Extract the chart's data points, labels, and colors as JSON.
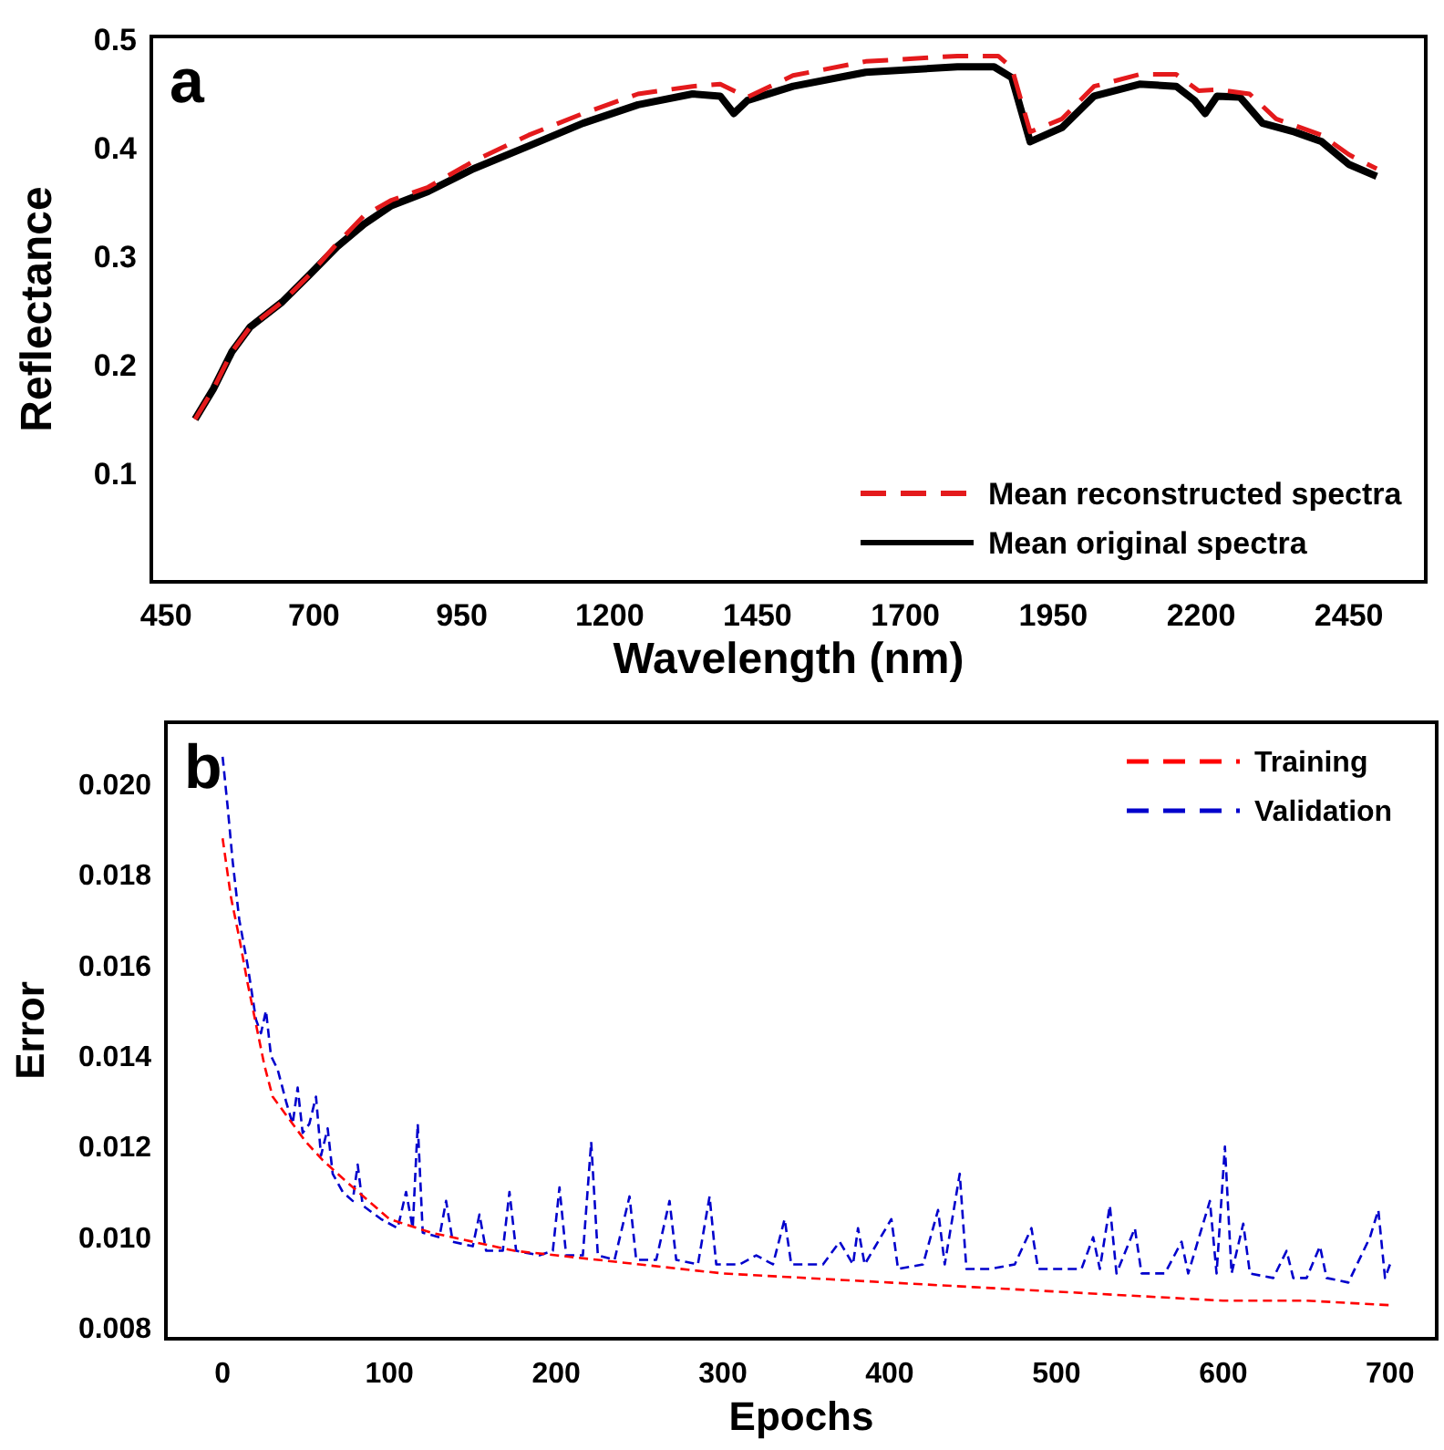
{
  "chart_data": [
    {
      "type": "line",
      "xlabel": "Wavelength (nm)",
      "ylabel": "Reflectance",
      "annotations": [
        "a"
      ],
      "xlim": [
        425,
        2580
      ],
      "ylim": [
        0,
        0.503
      ],
      "xticks": [
        450,
        700,
        950,
        1200,
        1450,
        1700,
        1950,
        2200,
        2450
      ],
      "yticks": [
        0.1,
        0.2,
        0.3,
        0.4,
        0.5
      ],
      "grid": false,
      "legend": "bottom right",
      "series": [
        {
          "name": "Mean reconstructed spectra",
          "color": "#e41a1c",
          "line_style": "dashed",
          "x": [
            499,
            530,
            561,
            592,
            646,
            692,
            739,
            785,
            831,
            893,
            970,
            1063,
            1155,
            1248,
            1340,
            1387,
            1410,
            1433,
            1510,
            1633,
            1788,
            1857,
            1880,
            1911,
            1965,
            2019,
            2096,
            2158,
            2196,
            2227,
            2282,
            2327,
            2404,
            2450,
            2497
          ],
          "values": [
            0.15,
            0.178,
            0.212,
            0.235,
            0.258,
            0.283,
            0.312,
            0.338,
            0.352,
            0.364,
            0.388,
            0.412,
            0.432,
            0.45,
            0.457,
            0.459,
            0.453,
            0.447,
            0.467,
            0.48,
            0.485,
            0.485,
            0.474,
            0.415,
            0.427,
            0.457,
            0.468,
            0.468,
            0.453,
            0.454,
            0.45,
            0.427,
            0.412,
            0.394,
            0.381
          ]
        },
        {
          "name": "Mean original spectra",
          "color": "#000000",
          "line_style": "solid",
          "x": [
            499,
            530,
            561,
            592,
            646,
            692,
            739,
            785,
            831,
            893,
            970,
            1063,
            1155,
            1248,
            1340,
            1387,
            1410,
            1433,
            1510,
            1633,
            1788,
            1850,
            1880,
            1911,
            1965,
            2019,
            2096,
            2158,
            2189,
            2207,
            2227,
            2266,
            2304,
            2358,
            2404,
            2450,
            2497
          ],
          "values": [
            0.15,
            0.178,
            0.212,
            0.235,
            0.258,
            0.283,
            0.309,
            0.33,
            0.347,
            0.36,
            0.381,
            0.402,
            0.423,
            0.44,
            0.45,
            0.448,
            0.432,
            0.444,
            0.457,
            0.47,
            0.475,
            0.475,
            0.465,
            0.406,
            0.419,
            0.448,
            0.459,
            0.457,
            0.444,
            0.432,
            0.448,
            0.447,
            0.423,
            0.415,
            0.406,
            0.385,
            0.374
          ]
        }
      ]
    },
    {
      "type": "line",
      "xlabel": "Epochs",
      "ylabel": "Error",
      "annotations": [
        "b"
      ],
      "xlim": [
        -34,
        728
      ],
      "ylim": [
        0.00776,
        0.02136
      ],
      "xticks": [
        0,
        100,
        200,
        300,
        400,
        500,
        600,
        700
      ],
      "yticks": [
        {
          "value": 0.008,
          "label": "0.008"
        },
        {
          "value": 0.01,
          "label": "0.010"
        },
        {
          "value": 0.012,
          "label": "0.012"
        },
        {
          "value": 0.014,
          "label": "0.014"
        },
        {
          "value": 0.016,
          "label": "0.016"
        },
        {
          "value": 0.018,
          "label": "0.018"
        },
        {
          "value": 0.02,
          "label": "0.020"
        }
      ],
      "grid": false,
      "legend": "top right",
      "series": [
        {
          "name": "Training",
          "color": "#ff0000",
          "line_style": "dashed",
          "x": [
            0,
            5,
            10,
            15,
            20,
            25,
            30,
            40,
            50,
            60,
            75,
            100,
            125,
            150,
            175,
            200,
            250,
            300,
            350,
            400,
            450,
            500,
            550,
            600,
            650,
            700
          ],
          "values": [
            0.0188,
            0.0175,
            0.0166,
            0.0156,
            0.0147,
            0.0138,
            0.0131,
            0.0126,
            0.0121,
            0.0117,
            0.0112,
            0.0104,
            0.0101,
            0.0099,
            0.0097,
            0.0096,
            0.0094,
            0.0092,
            0.0091,
            0.009,
            0.0089,
            0.0088,
            0.0087,
            0.0086,
            0.0086,
            0.0085
          ]
        },
        {
          "name": "Validation",
          "color": "#0000cc",
          "line_style": "dashed",
          "x": [
            0,
            3,
            6,
            10,
            15,
            20,
            23,
            26,
            29,
            33,
            38,
            42,
            45,
            48,
            52,
            56,
            59,
            63,
            66,
            72,
            78,
            81,
            84,
            95,
            105,
            110,
            114,
            117,
            120,
            130,
            134,
            138,
            150,
            154,
            158,
            168,
            172,
            176,
            190,
            198,
            202,
            206,
            216,
            221,
            225,
            235,
            244,
            248,
            260,
            268,
            272,
            285,
            292,
            296,
            310,
            320,
            330,
            337,
            341,
            360,
            370,
            378,
            381,
            385,
            401,
            405,
            420,
            429,
            433,
            442,
            446,
            460,
            475,
            485,
            489,
            505,
            515,
            522,
            526,
            532,
            536,
            547,
            551,
            565,
            575,
            579,
            592,
            596,
            601,
            605,
            612,
            616,
            630,
            638,
            642,
            650,
            658,
            662,
            675,
            688,
            693,
            697,
            700
          ],
          "values": [
            0.0206,
            0.0195,
            0.0183,
            0.017,
            0.016,
            0.0148,
            0.0145,
            0.015,
            0.014,
            0.0137,
            0.013,
            0.0125,
            0.0133,
            0.0123,
            0.0125,
            0.0131,
            0.0118,
            0.0124,
            0.0114,
            0.011,
            0.0108,
            0.0116,
            0.0107,
            0.0104,
            0.0102,
            0.011,
            0.0102,
            0.0125,
            0.0101,
            0.01,
            0.0108,
            0.0099,
            0.0098,
            0.0105,
            0.0097,
            0.0097,
            0.011,
            0.0097,
            0.0096,
            0.0097,
            0.0111,
            0.0096,
            0.0096,
            0.0121,
            0.0096,
            0.0095,
            0.0109,
            0.0095,
            0.0095,
            0.0108,
            0.0095,
            0.0094,
            0.0109,
            0.0094,
            0.0094,
            0.0096,
            0.0094,
            0.0104,
            0.0094,
            0.0094,
            0.0099,
            0.0094,
            0.0102,
            0.0094,
            0.0104,
            0.0093,
            0.0094,
            0.0106,
            0.0094,
            0.0114,
            0.0093,
            0.0093,
            0.0094,
            0.0102,
            0.0093,
            0.0093,
            0.0093,
            0.01,
            0.0093,
            0.0107,
            0.0092,
            0.0102,
            0.0092,
            0.0092,
            0.0099,
            0.0092,
            0.0108,
            0.0092,
            0.012,
            0.0092,
            0.0103,
            0.0092,
            0.0091,
            0.0097,
            0.0091,
            0.0091,
            0.0098,
            0.0091,
            0.009,
            0.01,
            0.0106,
            0.0091,
            0.0094
          ]
        }
      ]
    }
  ]
}
